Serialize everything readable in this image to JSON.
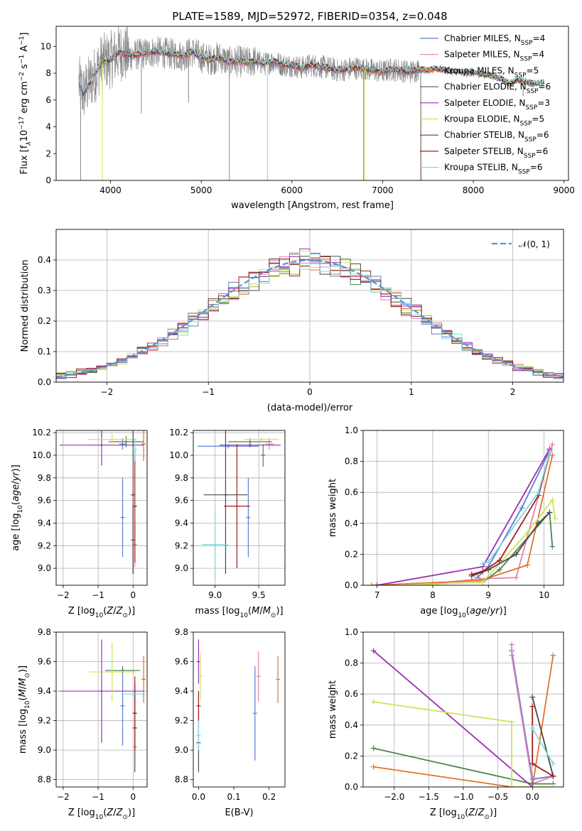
{
  "figure": {
    "title": "PLATE=1589, MJD=52972, FIBERID=0354, z=0.048"
  },
  "colors": {
    "chabrier_miles": "#5b7fd0",
    "salpeter_miles": "#e87fb3",
    "kroupa_miles": "#e0742a",
    "chabrier_elodie": "#4f8050",
    "salpeter_elodie": "#9b2fb0",
    "kroupa_elodie": "#cfe25a",
    "chabrier_stelib": "#4a4a4a",
    "salpeter_stelib": "#a01e1e",
    "kroupa_stelib": "#7fd9df",
    "observed": "#888888",
    "normal_curve": "#5b8fd8"
  },
  "chart_data": [
    {
      "id": "spectrum",
      "type": "line",
      "xlabel": "wavelength [Angstrom, rest frame]",
      "ylabel_parts": [
        "Flux [f",
        "λ",
        "10",
        "−17",
        " erg cm",
        "−2",
        " s",
        "−1",
        " A",
        "−1",
        "]"
      ],
      "xlim": [
        3400,
        9050
      ],
      "ylim": [
        0,
        11.5
      ],
      "xticks": [
        4000,
        5000,
        6000,
        7000,
        8000,
        9000
      ],
      "yticks": [
        0,
        2,
        4,
        6,
        8,
        10
      ],
      "grid": false,
      "legend_position": "top-right",
      "legend": [
        {
          "name": "Chabrier MILES, N",
          "sub": "SSP",
          "tail": "=4",
          "color_key": "chabrier_miles"
        },
        {
          "name": "Salpeter MILES, N",
          "sub": "SSP",
          "tail": "=4",
          "color_key": "salpeter_miles"
        },
        {
          "name": "Kroupa MILES, N",
          "sub": "SSP",
          "tail": "=5",
          "color_key": "kroupa_miles"
        },
        {
          "name": "Chabrier ELODIE, N",
          "sub": "SSP",
          "tail": "=6",
          "color_key": "chabrier_elodie"
        },
        {
          "name": "Salpeter ELODIE, N",
          "sub": "SSP",
          "tail": "=3",
          "color_key": "salpeter_elodie"
        },
        {
          "name": "Kroupa ELODIE, N",
          "sub": "SSP",
          "tail": "=5",
          "color_key": "kroupa_elodie"
        },
        {
          "name": "Chabrier STELIB, N",
          "sub": "SSP",
          "tail": "=6",
          "color_key": "chabrier_stelib"
        },
        {
          "name": "Salpeter STELIB, N",
          "sub": "SSP",
          "tail": "=6",
          "color_key": "salpeter_stelib"
        },
        {
          "name": "Kroupa STELIB, N",
          "sub": "SSP",
          "tail": "=6",
          "color_key": "kroupa_stelib"
        }
      ],
      "continuum_x": [
        3650,
        3700,
        3800,
        3900,
        4000,
        4100,
        4200,
        4300,
        4400,
        4500,
        4600,
        4700,
        4800,
        4900,
        5000,
        5100,
        5200,
        5300,
        5400,
        5500,
        5600,
        5700,
        5800,
        5900,
        6000,
        6100,
        6200,
        6300,
        6400,
        6500,
        6600,
        6700,
        6800,
        6900,
        7000,
        7100,
        7200,
        7300,
        7400,
        7500,
        7600,
        7700,
        7800,
        7900,
        8000,
        8100,
        8200,
        8300,
        8400,
        8500,
        8600,
        8700,
        8800
      ],
      "continuum_y": [
        7.2,
        6.5,
        7.6,
        8.8,
        9.0,
        9.6,
        9.3,
        9.4,
        9.5,
        9.6,
        9.5,
        9.4,
        9.3,
        9.6,
        9.2,
        9.0,
        9.2,
        8.8,
        8.9,
        8.8,
        8.9,
        8.7,
        8.9,
        8.6,
        8.6,
        8.4,
        8.6,
        8.5,
        8.4,
        8.2,
        8.3,
        8.4,
        8.3,
        8.2,
        8.1,
        8.3,
        8.2,
        8.1,
        8.3,
        8.2,
        8.3,
        8.2,
        8.1,
        8.0,
        8.0,
        7.9,
        7.8,
        7.6,
        7.2,
        7.5,
        7.3,
        7.2,
        7.3
      ],
      "observed_range": [
        3650,
        8780
      ],
      "absorption_dips": [
        {
          "x": 3670,
          "y": 0.0
        },
        {
          "x": 3910,
          "y": 0.0
        },
        {
          "x": 4340,
          "y": 5.0
        },
        {
          "x": 4860,
          "y": 5.8
        },
        {
          "x": 5310,
          "y": 0.0
        },
        {
          "x": 5730,
          "y": 0.0
        },
        {
          "x": 6790,
          "y": 0.0
        },
        {
          "x": 6800,
          "y": 0.0
        },
        {
          "x": 7420,
          "y": 0.0
        },
        {
          "x": 8550,
          "y": 6.3
        }
      ]
    },
    {
      "id": "residuals",
      "type": "line",
      "xlabel": "(data-model)/error",
      "ylabel": "Normed distribution",
      "xlim": [
        -2.5,
        2.5
      ],
      "ylim": [
        0,
        0.5
      ],
      "xticks": [
        -2,
        -1,
        0,
        1,
        2
      ],
      "yticks": [
        0.0,
        0.1,
        0.2,
        0.3,
        0.4
      ],
      "grid": true,
      "legend_position": "top-right",
      "legend": [
        {
          "name": "𝒩(0, 1)",
          "color_key": "normal_curve"
        }
      ],
      "bin_width": 0.1,
      "note_series": "step histograms, one per model, same color order as spectrum legend"
    },
    {
      "id": "age_vs_Z",
      "type": "scatter",
      "xlabel": "Z [log10(Z/Z⊙)]",
      "ylabel": "age  [log10(age/yr)]",
      "xlim": [
        -2.2,
        0.4
      ],
      "ylim": [
        8.85,
        10.22
      ],
      "xticks": [
        -2,
        -1,
        0
      ],
      "yticks": [
        9.0,
        9.2,
        9.4,
        9.6,
        9.8,
        10.0,
        10.2
      ],
      "grid": true,
      "points": [
        {
          "model": "chabrier_miles",
          "x": -0.3,
          "y": 10.1,
          "xerr": 0.1,
          "yerr": 0.05
        },
        {
          "model": "salpeter_miles",
          "x": 0.05,
          "y": 9.21,
          "xerr": 0.05,
          "yerr": 0.2
        },
        {
          "model": "kroupa_miles",
          "x": 0.3,
          "y": 10.1,
          "xerr": 0.05,
          "yerr": 0.15
        },
        {
          "model": "chabrier_elodie",
          "x": -0.2,
          "y": 10.12,
          "xerr": 0.5,
          "yerr": 0.05
        },
        {
          "model": "salpeter_elodie",
          "x": -0.9,
          "y": 10.09,
          "xerr": 1.2,
          "yerr": 0.18
        },
        {
          "model": "kroupa_elodie",
          "x": -0.6,
          "y": 10.14,
          "xerr": 0.7,
          "yerr": 0.05
        },
        {
          "model": "chabrier_stelib",
          "x": 0.0,
          "y": 9.65,
          "xerr": 0.05,
          "yerr": 0.7
        },
        {
          "model": "salpeter_stelib",
          "x": 0.05,
          "y": 9.55,
          "xerr": 0.05,
          "yerr": 0.5
        },
        {
          "model": "kroupa_stelib",
          "x": 0.05,
          "y": 10.05,
          "xerr": 0.05,
          "yerr": 0.1
        },
        {
          "model": "chabrier_miles",
          "x": -0.3,
          "y": 9.45,
          "xerr": 0.02,
          "yerr": 0.35
        },
        {
          "model": "chabrier_stelib",
          "x": 0.0,
          "y": 9.25,
          "xerr": 0.02,
          "yerr": 0.3
        }
      ]
    },
    {
      "id": "age_vs_mass",
      "type": "scatter",
      "xlabel": "mass [log10(M/M⊙)]",
      "ylabel": "",
      "xlim": [
        8.75,
        9.8
      ],
      "ylim": [
        8.85,
        10.22
      ],
      "xticks": [
        9.0,
        9.5
      ],
      "yticks": [
        9.0,
        9.2,
        9.4,
        9.6,
        9.8,
        10.0,
        10.2
      ],
      "grid": true,
      "points": [
        {
          "model": "chabrier_miles",
          "x": 9.38,
          "y": 9.45,
          "xerr": 0.02,
          "yerr": 0.35
        },
        {
          "model": "chabrier_miles",
          "x": 9.15,
          "y": 10.08,
          "xerr": 0.35,
          "yerr": 0.02
        },
        {
          "model": "salpeter_miles",
          "x": 9.62,
          "y": 10.1,
          "xerr": 0.05,
          "yerr": 0.05
        },
        {
          "model": "chabrier_elodie",
          "x": 9.4,
          "y": 10.12,
          "xerr": 0.25,
          "yerr": 0.03
        },
        {
          "model": "salpeter_elodie",
          "x": 9.4,
          "y": 10.09,
          "xerr": 0.35,
          "yerr": 0.02
        },
        {
          "model": "kroupa_elodie",
          "x": 9.53,
          "y": 10.14,
          "xerr": 0.2,
          "yerr": 0.02
        },
        {
          "model": "chabrier_stelib",
          "x": 9.12,
          "y": 9.65,
          "xerr": 0.25,
          "yerr": 0.7
        },
        {
          "model": "salpeter_stelib",
          "x": 9.25,
          "y": 9.55,
          "xerr": 0.15,
          "yerr": 0.55
        },
        {
          "model": "kroupa_stelib",
          "x": 9.0,
          "y": 9.21,
          "xerr": 0.15,
          "yerr": 0.3
        },
        {
          "model": "chabrier_elodie",
          "x": 9.55,
          "y": 10.0,
          "xerr": 0.02,
          "yerr": 0.1
        }
      ]
    },
    {
      "id": "mass_weight_vs_age",
      "type": "line",
      "xlabel": "age  [log10(age/yr)]",
      "ylabel": "mass weight",
      "xlim": [
        6.75,
        10.35
      ],
      "ylim": [
        0,
        1.0
      ],
      "xticks": [
        7,
        8,
        9,
        10
      ],
      "yticks": [
        0.0,
        0.2,
        0.4,
        0.6,
        0.8,
        1.0
      ],
      "grid": true,
      "series": [
        {
          "model": "chabrier_miles",
          "x": [
            8.8,
            9.0,
            9.6,
            10.1
          ],
          "y": [
            0.05,
            0.12,
            0.5,
            0.87
          ]
        },
        {
          "model": "salpeter_miles",
          "x": [
            8.0,
            8.8,
            9.5,
            10.15
          ],
          "y": [
            0.01,
            0.04,
            0.05,
            0.91
          ]
        },
        {
          "model": "kroupa_miles",
          "x": [
            6.9,
            8.85,
            9.7,
            10.15
          ],
          "y": [
            0.0,
            0.03,
            0.13,
            0.84
          ]
        },
        {
          "model": "chabrier_elodie",
          "x": [
            8.9,
            9.2,
            10.1,
            10.15
          ],
          "y": [
            0.02,
            0.1,
            0.47,
            0.25
          ]
        },
        {
          "model": "salpeter_elodie",
          "x": [
            7.0,
            8.9,
            10.1
          ],
          "y": [
            0.0,
            0.12,
            0.88
          ]
        },
        {
          "model": "kroupa_elodie",
          "x": [
            7.5,
            8.9,
            9.7,
            10.15,
            10.2
          ],
          "y": [
            0.0,
            0.02,
            0.34,
            0.55,
            0.43
          ]
        },
        {
          "model": "chabrier_stelib",
          "x": [
            8.7,
            9.0,
            9.5,
            9.9,
            10.1
          ],
          "y": [
            0.06,
            0.1,
            0.2,
            0.4,
            0.47
          ]
        },
        {
          "model": "salpeter_stelib",
          "x": [
            8.7,
            8.9,
            9.2,
            9.9,
            10.1
          ],
          "y": [
            0.07,
            0.09,
            0.16,
            0.58,
            0.86
          ]
        },
        {
          "model": "kroupa_stelib",
          "x": [
            8.9,
            9.0,
            9.9,
            10.1
          ],
          "y": [
            0.14,
            0.15,
            0.6,
            0.86
          ]
        }
      ]
    },
    {
      "id": "mass_vs_Z",
      "type": "scatter",
      "xlabel": "Z [log10(Z/Z⊙)]",
      "ylabel": "mass [log10(M/M⊙)]",
      "xlim": [
        -2.2,
        0.4
      ],
      "ylim": [
        8.75,
        9.8
      ],
      "xticks": [
        -2,
        -1,
        0
      ],
      "yticks": [
        8.8,
        9.0,
        9.2,
        9.4,
        9.6,
        9.8
      ],
      "grid": true,
      "points": [
        {
          "model": "chabrier_miles",
          "x": -0.3,
          "y": 9.3,
          "xerr": 0.02,
          "yerr": 0.27
        },
        {
          "model": "salpeter_miles",
          "x": 0.05,
          "y": 9.02,
          "xerr": 0.05,
          "yerr": 0.02
        },
        {
          "model": "kroupa_miles",
          "x": 0.3,
          "y": 9.48,
          "xerr": 0.05,
          "yerr": 0.16
        },
        {
          "model": "chabrier_elodie",
          "x": -0.3,
          "y": 9.54,
          "xerr": 0.5,
          "yerr": 0.02
        },
        {
          "model": "salpeter_elodie",
          "x": -0.9,
          "y": 9.4,
          "xerr": 1.2,
          "yerr": 0.35
        },
        {
          "model": "kroupa_elodie",
          "x": -0.6,
          "y": 9.53,
          "xerr": 0.65,
          "yerr": 0.2
        },
        {
          "model": "chabrier_stelib",
          "x": 0.05,
          "y": 9.15,
          "xerr": 0.05,
          "yerr": 0.3
        },
        {
          "model": "salpeter_stelib",
          "x": 0.05,
          "y": 9.25,
          "xerr": 0.05,
          "yerr": 0.25
        },
        {
          "model": "kroupa_stelib",
          "x": 0.0,
          "y": 9.38,
          "xerr": 0.35,
          "yerr": 0.02
        }
      ]
    },
    {
      "id": "mass_vs_ebv",
      "type": "scatter",
      "xlabel": "E(B-V)",
      "ylabel": "",
      "xlim": [
        -0.015,
        0.245
      ],
      "ylim": [
        8.75,
        9.8
      ],
      "xticks": [
        0.0,
        0.1,
        0.2
      ],
      "yticks": [
        8.8,
        9.0,
        9.2,
        9.4,
        9.6,
        9.8
      ],
      "grid": false,
      "points": [
        {
          "model": "chabrier_miles",
          "x": 0.16,
          "y": 9.25,
          "yerr": 0.32
        },
        {
          "model": "salpeter_miles",
          "x": 0.17,
          "y": 9.5,
          "yerr": 0.17
        },
        {
          "model": "kroupa_miles",
          "x": 0.225,
          "y": 9.48,
          "yerr": 0.16
        },
        {
          "model": "salpeter_elodie",
          "x": 0.0,
          "y": 9.6,
          "yerr": 0.15
        },
        {
          "model": "kroupa_elodie",
          "x": 0.005,
          "y": 9.5,
          "yerr": 0.16
        },
        {
          "model": "chabrier_stelib",
          "x": 0.0,
          "y": 9.05,
          "yerr": 0.2
        },
        {
          "model": "salpeter_stelib",
          "x": 0.0,
          "y": 9.3,
          "yerr": 0.1
        },
        {
          "model": "kroupa_stelib",
          "x": 0.0,
          "y": 9.1,
          "yerr": 0.1
        }
      ]
    },
    {
      "id": "mass_weight_vs_Z",
      "type": "line",
      "xlabel": "Z [log10(Z/Z⊙)]",
      "ylabel": "mass weight",
      "xlim": [
        -2.45,
        0.45
      ],
      "ylim": [
        0,
        1.0
      ],
      "xticks": [
        -2.0,
        -1.5,
        -1.0,
        -0.5,
        0.0
      ],
      "yticks": [
        0.0,
        0.2,
        0.4,
        0.6,
        0.8,
        1.0
      ],
      "grid": true,
      "series": [
        {
          "model": "chabrier_miles",
          "x": [
            -0.3,
            0.0,
            0.3
          ],
          "y": [
            0.88,
            0.05,
            0.07
          ]
        },
        {
          "model": "salpeter_miles",
          "x": [
            -0.3,
            -0.3,
            0.0,
            0.3
          ],
          "y": [
            0.92,
            0.85,
            0.02,
            0.07
          ]
        },
        {
          "model": "kroupa_miles",
          "x": [
            -2.3,
            -0.3,
            0.0,
            0.3
          ],
          "y": [
            0.13,
            0.0,
            0.0,
            0.85
          ]
        },
        {
          "model": "chabrier_elodie",
          "x": [
            -2.3,
            0.0,
            0.3
          ],
          "y": [
            0.25,
            0.02,
            0.02
          ]
        },
        {
          "model": "salpeter_elodie",
          "x": [
            -2.3,
            0.0
          ],
          "y": [
            0.88,
            0.0
          ]
        },
        {
          "model": "kroupa_elodie",
          "x": [
            -2.3,
            -0.3,
            -0.3,
            0.3
          ],
          "y": [
            0.55,
            0.42,
            0.0,
            0.0
          ]
        },
        {
          "model": "chabrier_stelib",
          "x": [
            0.0,
            0.3
          ],
          "y": [
            0.58,
            0.07
          ]
        },
        {
          "model": "salpeter_stelib",
          "x": [
            0.0,
            0.0,
            0.3
          ],
          "y": [
            0.52,
            0.15,
            0.07
          ]
        },
        {
          "model": "kroupa_stelib",
          "x": [
            0.0,
            0.3
          ],
          "y": [
            0.38,
            0.15
          ]
        }
      ]
    }
  ]
}
